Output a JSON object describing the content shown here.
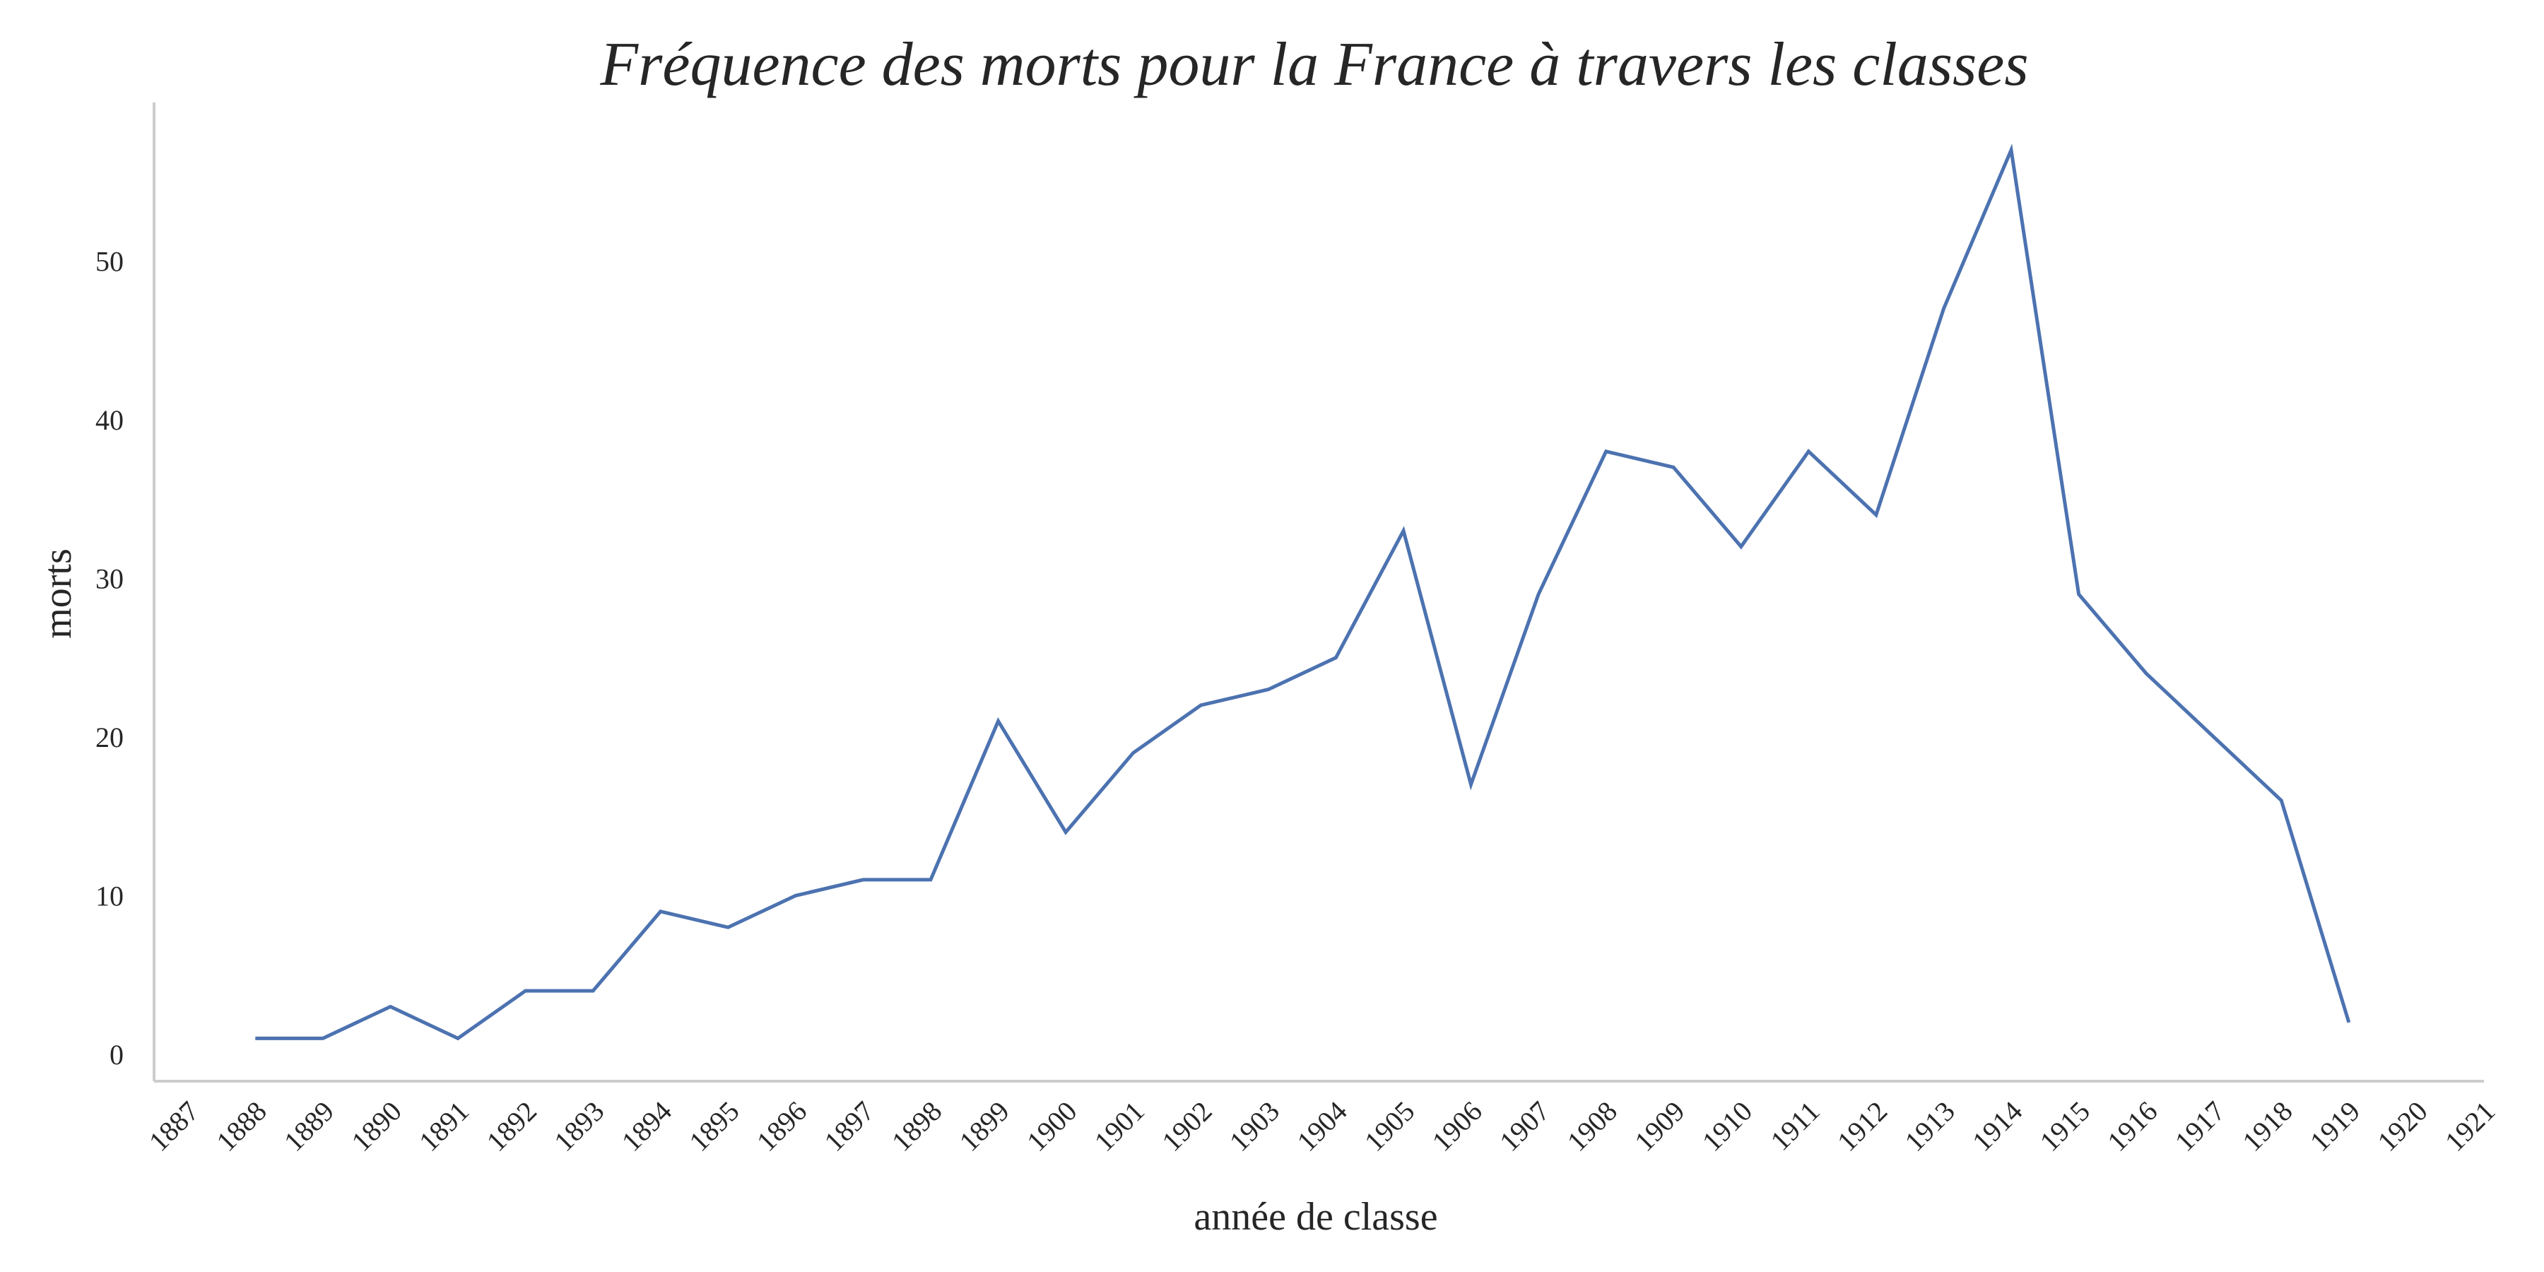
{
  "chart_data": {
    "type": "line",
    "title": "Fréquence des morts pour la France à travers les classes",
    "xlabel": "année de classe",
    "ylabel": "morts",
    "x_ticks": [
      "1887",
      "1888",
      "1889",
      "1890",
      "1891",
      "1892",
      "1893",
      "1894",
      "1895",
      "1896",
      "1897",
      "1898",
      "1899",
      "1900",
      "1901",
      "1902",
      "1903",
      "1904",
      "1905",
      "1906",
      "1907",
      "1908",
      "1909",
      "1910",
      "1911",
      "1912",
      "1913",
      "1914",
      "1915",
      "1916",
      "1917",
      "1918",
      "1919",
      "1920",
      "1921"
    ],
    "y_ticks": [
      "0",
      "10",
      "20",
      "30",
      "40",
      "50"
    ],
    "xlim": [
      1886.5,
      1921
    ],
    "ylim": [
      -1.7,
      60
    ],
    "grid": false,
    "series": [
      {
        "color": "#4c72b0",
        "x": [
          1888,
          1889,
          1890,
          1891,
          1892,
          1893,
          1894,
          1895,
          1896,
          1897,
          1898,
          1899,
          1900,
          1901,
          1902,
          1903,
          1904,
          1905,
          1906,
          1907,
          1908,
          1909,
          1910,
          1911,
          1912,
          1913,
          1914,
          1915,
          1916,
          1917,
          1918,
          1919
        ],
        "values": [
          1,
          1,
          3,
          1,
          4,
          4,
          9,
          8,
          10,
          11,
          11,
          21,
          14,
          19,
          22,
          23,
          25,
          33,
          17,
          29,
          38,
          37,
          32,
          38,
          34,
          47,
          57,
          29,
          24,
          20,
          16,
          2
        ]
      }
    ]
  }
}
